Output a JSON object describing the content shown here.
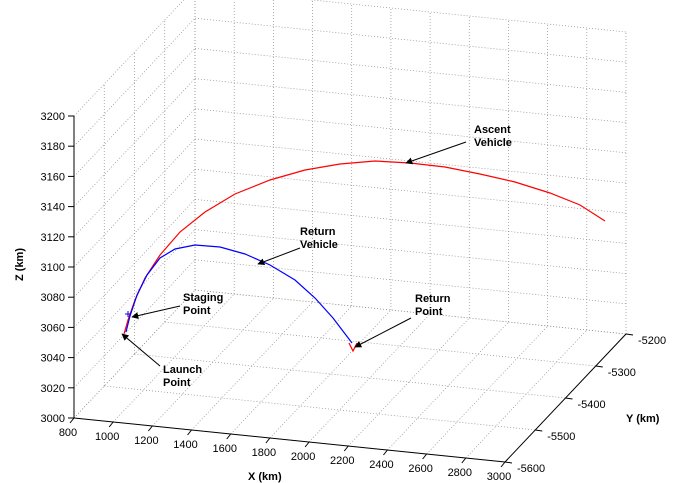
{
  "chart_data": {
    "type": "line",
    "projection": "3d",
    "grid": true,
    "xlabel": "X (km)",
    "ylabel": "Y (km)",
    "zlabel": "Z (km)",
    "xlim": [
      800,
      3000
    ],
    "ylim": [
      -5600,
      -5200
    ],
    "zlim": [
      3000,
      3200
    ],
    "x_ticks": [
      "800",
      "1000",
      "1200",
      "1400",
      "1600",
      "1800",
      "2000",
      "2200",
      "2400",
      "2600",
      "2800",
      "3000"
    ],
    "y_ticks": [
      "-5600",
      "-5500",
      "-5400",
      "-5300",
      "-5200"
    ],
    "z_ticks": [
      "3000",
      "3020",
      "3040",
      "3060",
      "3080",
      "3100",
      "3120",
      "3140",
      "3160",
      "3180",
      "3200"
    ],
    "series": [
      {
        "key": "ascent",
        "color": "#ff0000",
        "points": [
          [
            124,
            334
          ],
          [
            128,
            320
          ],
          [
            135,
            300
          ],
          [
            145,
            278
          ],
          [
            160,
            255
          ],
          [
            180,
            232
          ],
          [
            205,
            212
          ],
          [
            235,
            194
          ],
          [
            270,
            180
          ],
          [
            305,
            170
          ],
          [
            340,
            164
          ],
          [
            375,
            161
          ],
          [
            410,
            163
          ],
          [
            445,
            167
          ],
          [
            480,
            174
          ],
          [
            515,
            182
          ],
          [
            550,
            193
          ],
          [
            580,
            205
          ],
          [
            605,
            221
          ]
        ]
      },
      {
        "key": "return",
        "color": "#0000ff",
        "points": [
          [
            126,
            332
          ],
          [
            130,
            316
          ],
          [
            137,
            295
          ],
          [
            147,
            275
          ],
          [
            160,
            258
          ],
          [
            175,
            249
          ],
          [
            195,
            245
          ],
          [
            220,
            247
          ],
          [
            245,
            254
          ],
          [
            270,
            265
          ],
          [
            295,
            280
          ],
          [
            315,
            298
          ],
          [
            333,
            318
          ],
          [
            352,
            343
          ]
        ]
      },
      {
        "key": "return-marker",
        "color": "#ff0000",
        "points": [
          [
            349,
            343
          ],
          [
            353,
            351
          ],
          [
            357,
            343
          ]
        ]
      }
    ],
    "annotations": [
      {
        "key": "ascent-vehicle",
        "lines": [
          "Ascent",
          "Vehicle"
        ],
        "text_xy": [
          474,
          133
        ],
        "arrow_from": [
          466,
          142
        ],
        "arrow_to": [
          406,
          163
        ]
      },
      {
        "key": "return-vehicle",
        "lines": [
          "Return",
          "Vehicle"
        ],
        "text_xy": [
          300,
          235
        ],
        "arrow_from": [
          300,
          248
        ],
        "arrow_to": [
          258,
          264
        ]
      },
      {
        "key": "staging-point",
        "lines": [
          "Staging",
          "Point"
        ],
        "text_xy": [
          183,
          301
        ],
        "arrow_from": [
          180,
          306
        ],
        "arrow_to": [
          132,
          317
        ]
      },
      {
        "key": "return-point",
        "lines": [
          "Return",
          "Point"
        ],
        "text_xy": [
          415,
          302
        ],
        "arrow_from": [
          411,
          318
        ],
        "arrow_to": [
          355,
          347
        ]
      },
      {
        "key": "launch-point",
        "lines": [
          "Launch",
          "Point"
        ],
        "text_xy": [
          163,
          373
        ],
        "arrow_from": [
          160,
          366
        ],
        "arrow_to": [
          122,
          334
        ]
      }
    ]
  }
}
